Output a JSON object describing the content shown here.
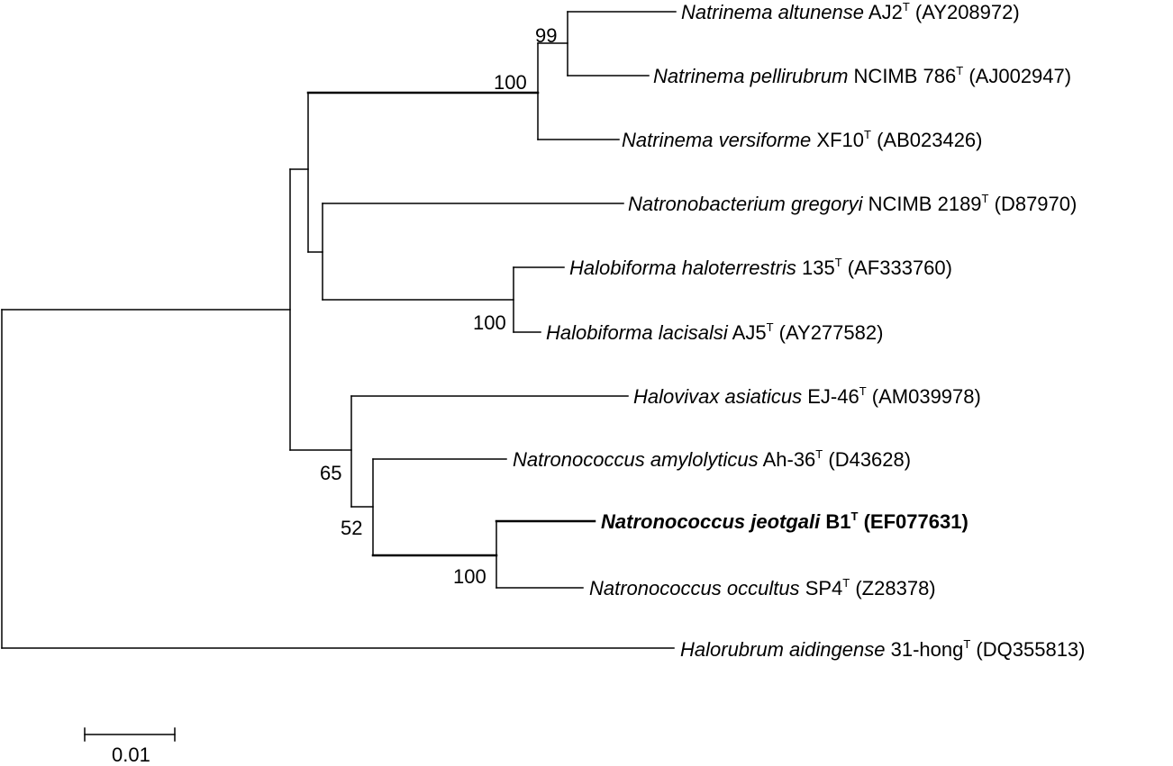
{
  "taxa": [
    {
      "genus_species": "Natrinema altunense",
      "strain": "AJ2",
      "superscript": "T",
      "accession": "(AY208972)",
      "bold": false
    },
    {
      "genus_species": "Natrinema pellirubrum",
      "strain": "NCIMB 786",
      "superscript": "T",
      "accession": "(AJ002947)",
      "bold": false
    },
    {
      "genus_species": "Natrinema versiforme",
      "strain": "XF10",
      "superscript": "T",
      "accession": "(AB023426)",
      "bold": false
    },
    {
      "genus_species": "Natronobacterium gregoryi",
      "strain": "NCIMB 2189",
      "superscript": "T",
      "accession": "(D87970)",
      "bold": false
    },
    {
      "genus_species": "Halobiforma haloterrestris",
      "strain": "135",
      "superscript": "T",
      "accession": "(AF333760)",
      "bold": false
    },
    {
      "genus_species": "Halobiforma lacisalsi",
      "strain": "AJ5",
      "superscript": "T",
      "accession": "(AY277582)",
      "bold": false
    },
    {
      "genus_species": "Halovivax asiaticus",
      "strain": "EJ-46",
      "superscript": "T",
      "accession": "(AM039978)",
      "bold": false
    },
    {
      "genus_species": "Natronococcus amylolyticus",
      "strain": "Ah-36",
      "superscript": "T",
      "accession": "(D43628)",
      "bold": false
    },
    {
      "genus_species": "Natronococcus jeotgali",
      "strain": "B1",
      "superscript": "T",
      "accession": "(EF077631)",
      "bold": true
    },
    {
      "genus_species": "Natronococcus occultus",
      "strain": "SP4",
      "superscript": "T",
      "accession": "(Z28378)",
      "bold": false
    },
    {
      "genus_species": "Halorubrum aidingense",
      "strain": "31-hong",
      "superscript": "T",
      "accession": "(DQ355813)",
      "bold": false
    }
  ],
  "bootstrap": [
    "99",
    "100",
    "100",
    "65",
    "52",
    "100"
  ],
  "scale_bar": {
    "label": "0.01"
  }
}
